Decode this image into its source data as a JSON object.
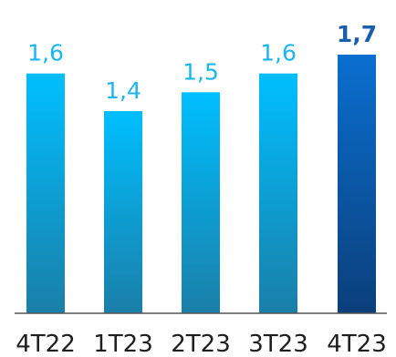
{
  "chart_data": {
    "type": "bar",
    "categories": [
      "4T22",
      "1T23",
      "2T23",
      "3T23",
      "4T23"
    ],
    "values": [
      1.6,
      1.4,
      1.5,
      1.6,
      1.7
    ],
    "value_labels": [
      "1,6",
      "1,4",
      "1,5",
      "1,6",
      "1,7"
    ],
    "highlight_index": 4,
    "colors": {
      "bar_top": "#00bfff",
      "bar_bottom": "#1a7fa8",
      "highlight_top": "#0a6fd0",
      "highlight_bottom": "#0b3f7a",
      "label": "#1ab6f0",
      "highlight_label": "#1b5faa",
      "axis": "#555555",
      "tick_text": "#1e1e1e"
    },
    "title": "",
    "xlabel": "",
    "ylabel": "",
    "ylim": [
      0,
      1.7
    ],
    "grid": false,
    "legend": "none"
  }
}
